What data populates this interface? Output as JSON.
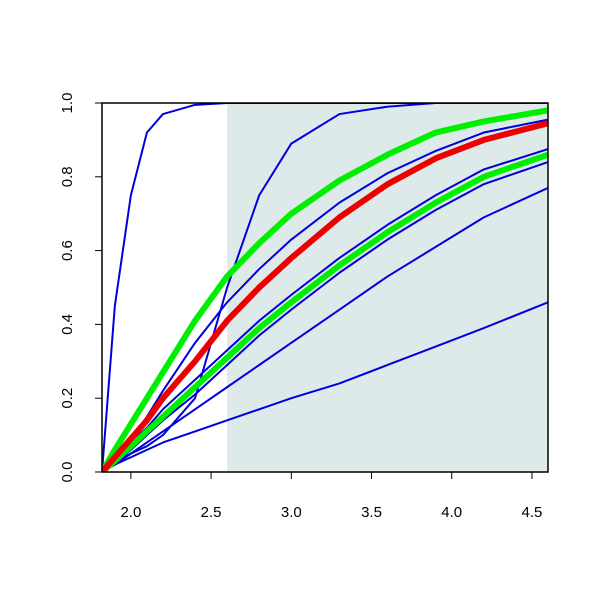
{
  "chart_data": {
    "type": "line",
    "x": [
      1.82,
      1.9,
      2.0,
      2.1,
      2.2,
      2.4,
      2.6,
      2.8,
      3.0,
      3.3,
      3.6,
      3.9,
      4.2,
      4.6
    ],
    "xlim": [
      1.82,
      4.6
    ],
    "xticks": [
      {
        "value": 2,
        "label": "2.0"
      },
      2.5,
      {
        "value": 3,
        "label": "3.0"
      },
      3.5,
      {
        "value": 4,
        "label": "4.0"
      },
      4.5
    ],
    "ylim": [
      0,
      1
    ],
    "yticks": [
      {
        "value": 0,
        "label": "0.0"
      },
      0.2,
      0.4,
      0.6,
      0.8,
      {
        "value": 1,
        "label": "1.0"
      }
    ],
    "shaded_region": {
      "xlim": [
        2.6,
        4.6
      ],
      "color": "#deeaea"
    },
    "series": [
      {
        "color": "#0000dd",
        "width": 2,
        "values": [
          0,
          0.45,
          0.75,
          0.92,
          0.97,
          0.995,
          1,
          1,
          1,
          1,
          1,
          1,
          1,
          1
        ]
      },
      {
        "color": "#0000dd",
        "width": 2,
        "values": [
          0,
          0.03,
          0.05,
          0.07,
          0.1,
          0.2,
          0.5,
          0.75,
          0.89,
          0.97,
          0.99,
          1,
          1,
          1
        ]
      },
      {
        "color": "#0000dd",
        "width": 2,
        "values": [
          0,
          0.04,
          0.09,
          0.15,
          0.22,
          0.35,
          0.46,
          0.55,
          0.63,
          0.73,
          0.81,
          0.87,
          0.92,
          0.955
        ]
      },
      {
        "color": "#0000dd",
        "width": 2,
        "values": [
          0,
          0.035,
          0.08,
          0.12,
          0.17,
          0.25,
          0.33,
          0.41,
          0.48,
          0.58,
          0.67,
          0.75,
          0.82,
          0.875
        ]
      },
      {
        "color": "#0000dd",
        "width": 2,
        "values": [
          0,
          0.025,
          0.06,
          0.1,
          0.14,
          0.21,
          0.29,
          0.37,
          0.44,
          0.54,
          0.63,
          0.71,
          0.78,
          0.84
        ]
      },
      {
        "color": "#0000dd",
        "width": 2,
        "values": [
          0,
          0.02,
          0.05,
          0.08,
          0.11,
          0.17,
          0.23,
          0.29,
          0.35,
          0.44,
          0.53,
          0.61,
          0.69,
          0.77
        ]
      },
      {
        "color": "#0000dd",
        "width": 2,
        "values": [
          0,
          0.02,
          0.04,
          0.06,
          0.08,
          0.11,
          0.14,
          0.17,
          0.2,
          0.24,
          0.29,
          0.34,
          0.39,
          0.46
        ]
      },
      {
        "color": "#00ee00",
        "width": 6,
        "values": [
          0,
          0.06,
          0.13,
          0.2,
          0.27,
          0.41,
          0.53,
          0.62,
          0.7,
          0.79,
          0.86,
          0.92,
          0.95,
          0.98
        ]
      },
      {
        "color": "#00ee00",
        "width": 6,
        "values": [
          0,
          0.03,
          0.07,
          0.11,
          0.15,
          0.23,
          0.31,
          0.39,
          0.46,
          0.56,
          0.65,
          0.73,
          0.8,
          0.86
        ]
      },
      {
        "color": "#ee0000",
        "width": 6,
        "values": [
          0,
          0.04,
          0.09,
          0.14,
          0.2,
          0.3,
          0.41,
          0.5,
          0.58,
          0.69,
          0.78,
          0.85,
          0.9,
          0.945
        ]
      }
    ]
  }
}
